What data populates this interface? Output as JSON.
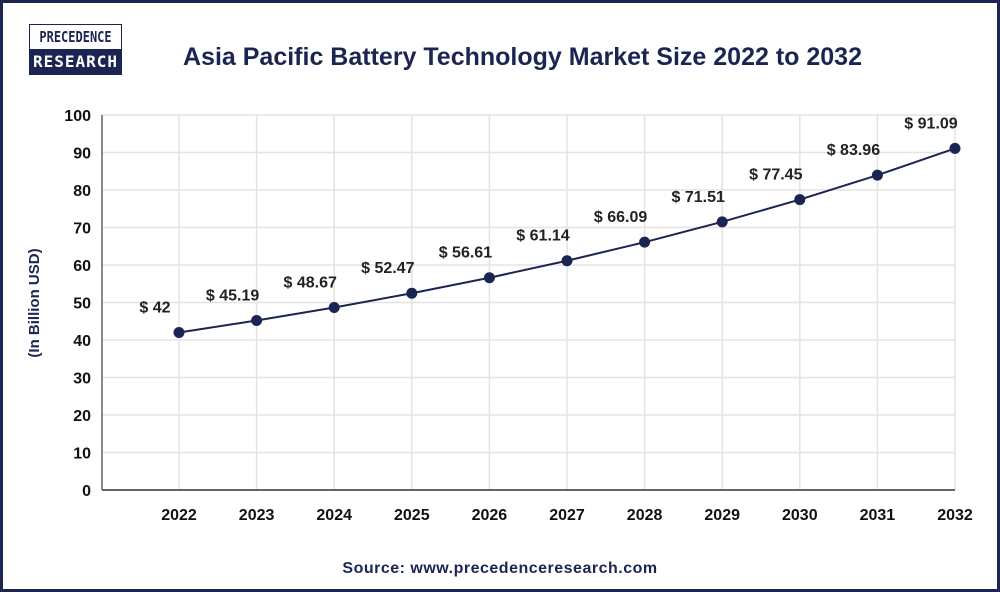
{
  "logo": {
    "line1": "PRECEDENCE",
    "line2": "RESEARCH"
  },
  "source": "Source: www.precedenceresearch.com",
  "colors": {
    "line": "#1c2552",
    "grid": "#e3e3e3",
    "title": "#1c2552",
    "border": "#1c2552"
  },
  "chart_data": {
    "type": "line",
    "title": "Asia Pacific Battery Technology Market Size 2022 to 2032",
    "xlabel": "",
    "ylabel": "(In Billion USD)",
    "ylim": [
      0,
      100
    ],
    "yticks": [
      0,
      10,
      20,
      30,
      40,
      50,
      60,
      70,
      80,
      90,
      100
    ],
    "grid": true,
    "categories": [
      "2022",
      "2023",
      "2024",
      "2025",
      "2026",
      "2027",
      "2028",
      "2029",
      "2030",
      "2031",
      "2032"
    ],
    "values": [
      42,
      45.19,
      48.67,
      52.47,
      56.61,
      61.14,
      66.09,
      71.51,
      77.45,
      83.96,
      91.09
    ],
    "data_labels": [
      "$ 42",
      "$ 45.19",
      "$ 48.67",
      "$ 52.47",
      "$ 56.61",
      "$ 61.14",
      "$ 66.09",
      "$ 71.51",
      "$ 77.45",
      "$ 83.96",
      "$ 91.09"
    ]
  }
}
